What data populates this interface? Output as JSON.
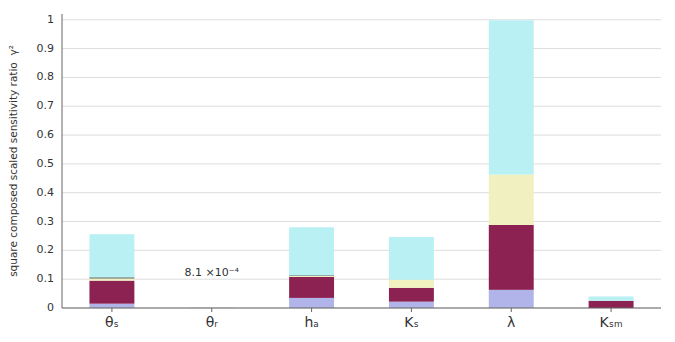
{
  "chart_data": {
    "type": "bar",
    "stacked": true,
    "y_label": "square composed scaled sensitivity ratio  γ²",
    "categories": [
      "θₛ",
      "θᵣ",
      "hₐ",
      "Kₛ",
      "λ",
      "Kₛₘ"
    ],
    "series": [
      {
        "color": "#b0b4e8",
        "values": [
          0.015,
          0.00081,
          0.035,
          0.022,
          0.063,
          0.0
        ]
      },
      {
        "color": "#8b2252",
        "values": [
          0.08,
          0.0,
          0.073,
          0.048,
          0.225,
          0.025
        ]
      },
      {
        "color": "#f0f0c0",
        "values": [
          0.008,
          0.0,
          0.003,
          0.028,
          0.175,
          0.0
        ]
      },
      {
        "color": "#111111",
        "values": [
          0.003,
          0.0,
          0.002,
          0.0,
          0.0,
          0.0
        ]
      },
      {
        "color": "#b8f0f4",
        "values": [
          0.15,
          0.0,
          0.167,
          0.148,
          0.535,
          0.015
        ]
      }
    ],
    "annotations": [
      {
        "text": "8.1 ×10⁻⁴",
        "x": "θᵣ",
        "y": 0.12
      }
    ],
    "ylim": [
      0,
      1.02
    ],
    "yticks": [
      0,
      0.1,
      0.2,
      0.3,
      0.4,
      0.5,
      0.6,
      0.7,
      0.8,
      0.9,
      1
    ],
    "grid": true
  }
}
